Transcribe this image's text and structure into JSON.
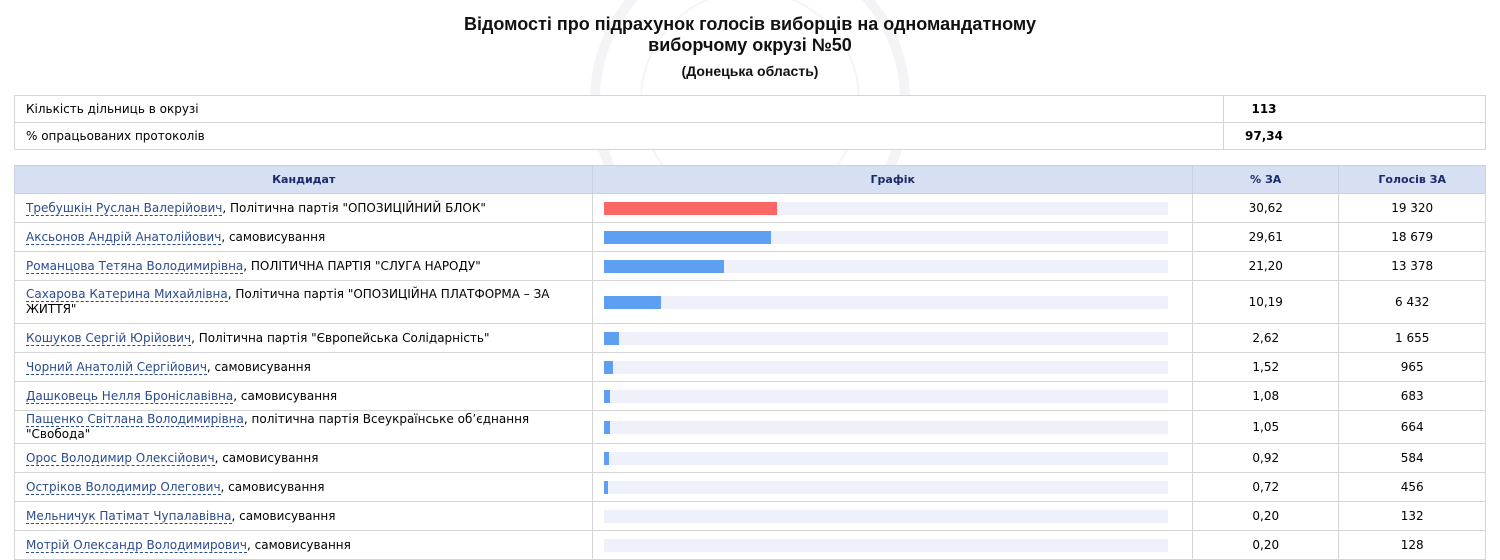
{
  "header": {
    "title": "Відомості про підрахунок голосів виборців на одномандатному виборчому окрузі №50",
    "subtitle": "(Донецька область)"
  },
  "stats": [
    {
      "label": "Кількість дільниць в окрузі",
      "value": "113"
    },
    {
      "label": "% опрацьованих протоколів",
      "value": "97,34"
    }
  ],
  "columns": {
    "candidate": "Кандидат",
    "graph": "Графік",
    "pct": "% ЗА",
    "votes": "Голосів ЗА"
  },
  "colors": {
    "lead_bar": "#ff6666",
    "bar": "#5e9ff2",
    "header_bg": "#d7e0f2"
  },
  "candidates": [
    {
      "name": "Требушкін Руслан Валерійович",
      "party": ", Політична партія \"ОПОЗИЦІЙНИЙ БЛОК\"",
      "pct": "30,62",
      "pct_value": 30.62,
      "votes": "19 320"
    },
    {
      "name": "Аксьонов Андрій Анатолійович",
      "party": ", самовисування",
      "pct": "29,61",
      "pct_value": 29.61,
      "votes": "18 679"
    },
    {
      "name": "Романцова Тетяна Володимирівна",
      "party": ", ПОЛІТИЧНА ПАРТІЯ \"СЛУГА НАРОДУ\"",
      "pct": "21,20",
      "pct_value": 21.2,
      "votes": "13 378"
    },
    {
      "name": "Сахарова Катерина Михайлівна",
      "party": ", Політична партія \"ОПОЗИЦІЙНА ПЛАТФОРМА – ЗА ЖИТТЯ\"",
      "pct": "10,19",
      "pct_value": 10.19,
      "votes": "6 432"
    },
    {
      "name": "Кошуков Сергій Юрійович",
      "party": ", Політична партія \"Європейська Солідарність\"",
      "pct": "2,62",
      "pct_value": 2.62,
      "votes": "1 655"
    },
    {
      "name": "Чорний Анатолій Сергійович",
      "party": ", самовисування",
      "pct": "1,52",
      "pct_value": 1.52,
      "votes": "965"
    },
    {
      "name": "Дашковець Нелля Броніславівна",
      "party": ", самовисування",
      "pct": "1,08",
      "pct_value": 1.08,
      "votes": "683"
    },
    {
      "name": "Пащенко Світлана Володимирівна",
      "party": ", політична партія Всеукраїнське об’єднання \"Свобода\"",
      "pct": "1,05",
      "pct_value": 1.05,
      "votes": "664"
    },
    {
      "name": "Орос Володимир Олексійович",
      "party": ", самовисування",
      "pct": "0,92",
      "pct_value": 0.92,
      "votes": "584"
    },
    {
      "name": "Остріков Володимир Олегович",
      "party": ", самовисування",
      "pct": "0,72",
      "pct_value": 0.72,
      "votes": "456"
    },
    {
      "name": "Мельничук Патімат Чупалавівна",
      "party": ", самовисування",
      "pct": "0,20",
      "pct_value": 0.2,
      "votes": "132"
    },
    {
      "name": "Мотрій Олександр Володимирович",
      "party": ", самовисування",
      "pct": "0,20",
      "pct_value": 0.2,
      "votes": "128"
    }
  ]
}
